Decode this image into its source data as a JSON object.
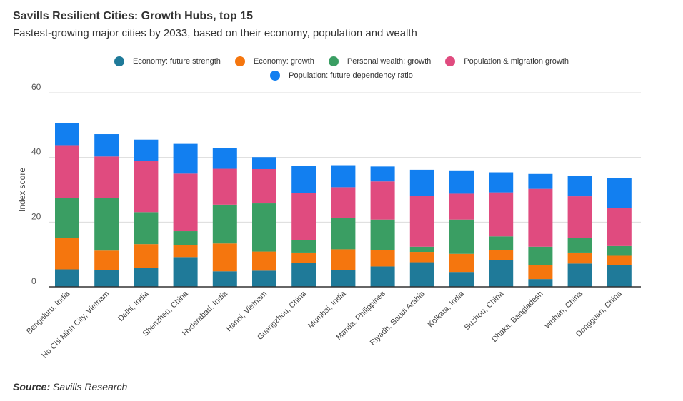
{
  "header": {
    "title": "Savills Resilient Cities: Growth Hubs, top 15",
    "subtitle": "Fastest-growing major cities by 2033, based on their economy, population and wealth"
  },
  "source": {
    "label": "Source:",
    "text": "Savills Research"
  },
  "chart_data": {
    "type": "bar",
    "stacked": true,
    "title": "Savills Resilient Cities: Growth Hubs, top 15",
    "subtitle": "Fastest-growing major cities by 2033, based on their economy, population and wealth",
    "xlabel": "",
    "ylabel": "Index score",
    "ylim": [
      0,
      60
    ],
    "yticks": [
      0,
      20,
      40,
      60
    ],
    "grid": true,
    "legend_position": "top",
    "categories": [
      "Bengaluru, India",
      "Ho Chi Minh City, Vietnam",
      "Delhi, India",
      "Shenzhen, China",
      "Hyderabad, India",
      "Hanoi, Vietnam",
      "Guangzhou, China",
      "Mumbai, India",
      "Manila, Philippines",
      "Riyadh, Saudi Arabia",
      "Kolkata, India",
      "Suzhou, China",
      "Dhaka, Bangladesh",
      "Wuhan, China",
      "Dongguan, China"
    ],
    "series": [
      {
        "name": "Economy: future strength",
        "color": "#1f7a99",
        "values": [
          5.4,
          5.2,
          5.8,
          9.2,
          4.8,
          5.0,
          7.4,
          5.2,
          6.3,
          7.6,
          4.6,
          8.2,
          2.4,
          7.2,
          6.8
        ]
      },
      {
        "name": "Economy: growth",
        "color": "#f5760e",
        "values": [
          9.8,
          6.0,
          7.4,
          3.6,
          8.6,
          5.9,
          3.2,
          6.4,
          5.1,
          3.2,
          5.6,
          3.2,
          4.4,
          3.4,
          2.8
        ]
      },
      {
        "name": "Personal wealth: growth",
        "color": "#3a9e63",
        "values": [
          12.2,
          16.2,
          9.9,
          4.4,
          12.0,
          14.9,
          3.8,
          9.8,
          9.4,
          1.6,
          10.6,
          4.2,
          5.6,
          4.6,
          3.0
        ]
      },
      {
        "name": "Population & migration growth",
        "color": "#e04b7f",
        "values": [
          16.4,
          12.9,
          15.8,
          17.8,
          11.1,
          10.6,
          14.6,
          9.4,
          11.8,
          15.8,
          8.0,
          13.6,
          17.9,
          12.8,
          11.8
        ]
      },
      {
        "name": "Population: future dependency ratio",
        "color": "#127ff0",
        "values": [
          6.9,
          6.9,
          6.6,
          9.2,
          6.4,
          3.7,
          8.4,
          6.8,
          4.6,
          8.0,
          7.2,
          6.2,
          4.6,
          6.4,
          9.2
        ]
      }
    ]
  }
}
